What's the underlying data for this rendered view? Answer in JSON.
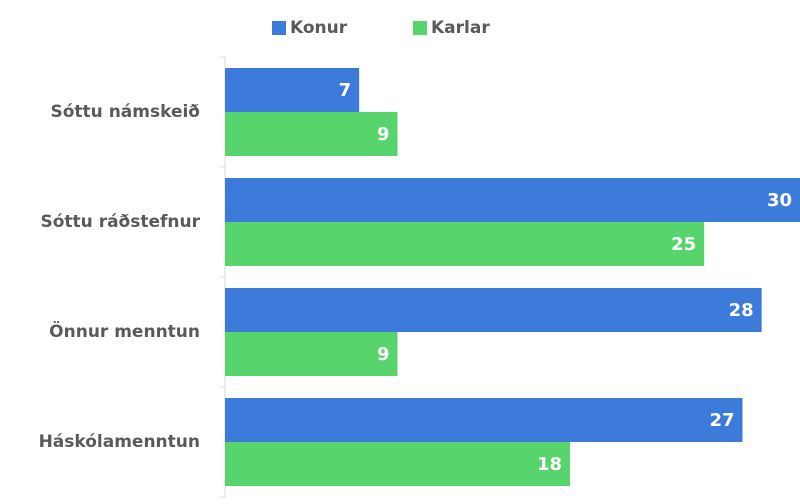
{
  "chart_data": {
    "type": "bar",
    "orientation": "horizontal",
    "categories": [
      "Sóttu námskeið",
      "Sóttu ráðstefnur",
      "Önnur menntun",
      "Háskólamenntun"
    ],
    "series": [
      {
        "name": "Konur",
        "color": "#3d7bdb",
        "values": [
          7,
          30,
          28,
          27
        ]
      },
      {
        "name": "Karlar",
        "color": "#57d46c",
        "values": [
          9,
          25,
          9,
          18
        ]
      }
    ],
    "legend": "top"
  }
}
